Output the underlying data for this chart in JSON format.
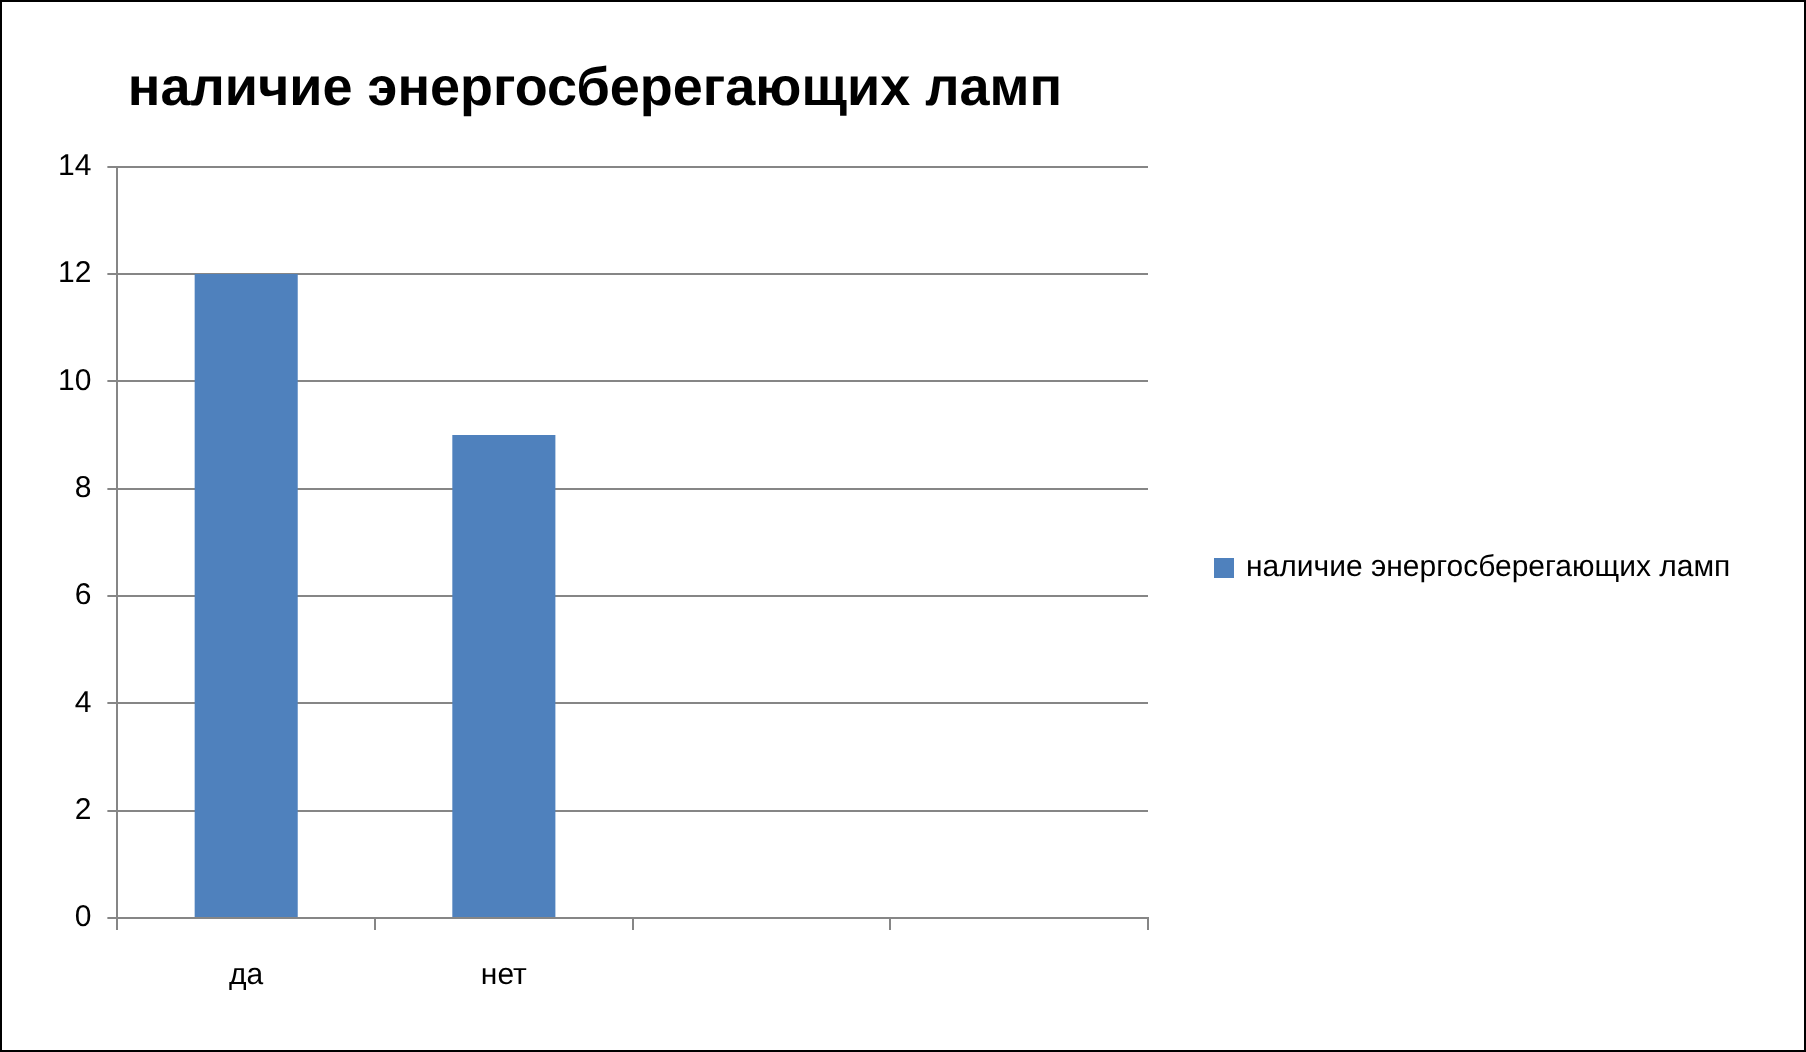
{
  "chart_data": {
    "type": "bar",
    "title": "наличие энергосберегающих ламп",
    "categories": [
      "да",
      "нет",
      null,
      null
    ],
    "series": [
      {
        "name": "наличие энергосберегающих ламп",
        "color": "#4f81bd",
        "values": [
          12,
          9,
          null,
          null
        ]
      }
    ],
    "ylim": [
      0,
      14
    ],
    "yticks": [
      0,
      2,
      4,
      6,
      8,
      10,
      12,
      14
    ],
    "grid": "y",
    "legend": "right"
  }
}
